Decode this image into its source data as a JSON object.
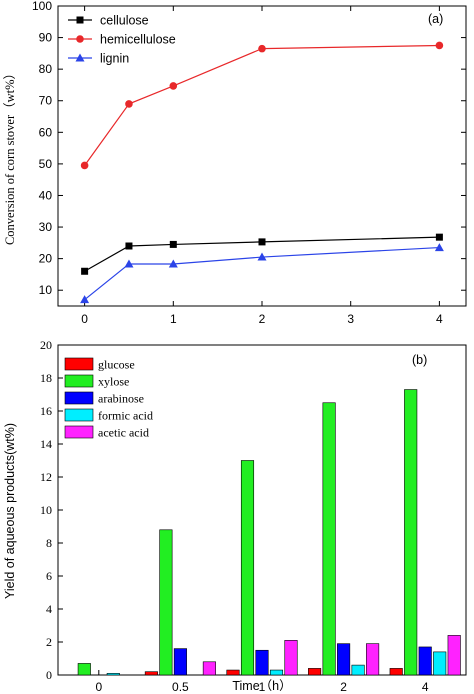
{
  "chart_data": [
    {
      "type": "line",
      "panel_label": "(a)",
      "xlabel": "",
      "ylabel": "Conversion of corn stover（wt%）",
      "x": [
        0,
        0.5,
        1,
        2,
        4
      ],
      "xlim": [
        -0.3,
        4.3
      ],
      "ylim": [
        5,
        100
      ],
      "xticks": [
        0,
        1,
        2,
        3,
        4
      ],
      "yticks": [
        10,
        20,
        30,
        40,
        50,
        60,
        70,
        80,
        90,
        100
      ],
      "legend_position": "top-left",
      "series": [
        {
          "name": "cellulose",
          "values": [
            16,
            24,
            24.5,
            25.3,
            26.8
          ],
          "color": "#000000",
          "marker": "square"
        },
        {
          "name": "hemicellulose",
          "values": [
            49.5,
            69,
            74.7,
            86.5,
            87.5
          ],
          "color": "#e8282a",
          "marker": "circle"
        },
        {
          "name": "lignin",
          "values": [
            7,
            18.3,
            18.3,
            20.5,
            23.5
          ],
          "color": "#2b44e8",
          "marker": "triangle"
        }
      ]
    },
    {
      "type": "bar",
      "panel_label": "(b)",
      "xlabel": "Time（h）",
      "ylabel": "Yield of aqueous products(wt%)",
      "categories": [
        "0",
        "0.5",
        "1",
        "2",
        "4"
      ],
      "ylim": [
        0,
        20
      ],
      "yticks": [
        0,
        2,
        4,
        6,
        8,
        10,
        12,
        14,
        16,
        18,
        20
      ],
      "legend_position": "top-left",
      "series": [
        {
          "name": "glucose",
          "values": [
            0,
            0.2,
            0.3,
            0.4,
            0.4
          ],
          "color": "#ff0000"
        },
        {
          "name": "xylose",
          "values": [
            0.7,
            8.8,
            13.0,
            16.5,
            17.3
          ],
          "color": "#22ee22"
        },
        {
          "name": "arabinose",
          "values": [
            0,
            1.6,
            1.5,
            1.9,
            1.7
          ],
          "color": "#0000ff"
        },
        {
          "name": "formic acid",
          "values": [
            0.1,
            0,
            0.3,
            0.6,
            1.4
          ],
          "color": "#00eeff"
        },
        {
          "name": "acetic acid",
          "values": [
            0,
            0.8,
            2.1,
            1.9,
            2.4
          ],
          "color": "#ff22ff"
        }
      ]
    }
  ]
}
